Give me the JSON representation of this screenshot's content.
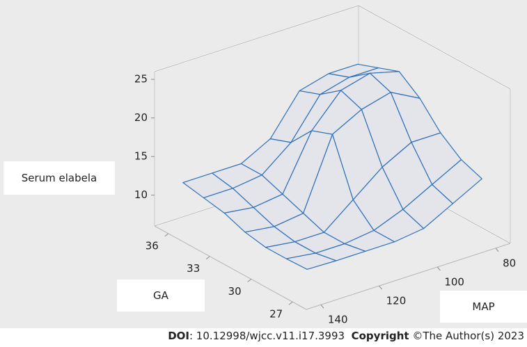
{
  "chart_data": {
    "type": "surface",
    "zlabel": "Serum elabela",
    "ylabel": "GA",
    "xlabel": "MAP",
    "x": [
      80,
      90,
      100,
      110,
      120,
      130,
      140
    ],
    "y": [
      27,
      28.5,
      30,
      31.5,
      33,
      34.5,
      36
    ],
    "z": [
      [
        14,
        12,
        10,
        9.5,
        9.5,
        9.5,
        9.6
      ],
      [
        15,
        13,
        11,
        9.5,
        9,
        9,
        9.5
      ],
      [
        17,
        17,
        15,
        12,
        9,
        9,
        9.5
      ],
      [
        20,
        22,
        21,
        19,
        10,
        9.5,
        10
      ],
      [
        22,
        23,
        22,
        18,
        11,
        10.5,
        11
      ],
      [
        21,
        21,
        20,
        15,
        12,
        11.5,
        11.5
      ],
      [
        20,
        20,
        19,
        14,
        12,
        12,
        12
      ]
    ],
    "color": "#2f6fb8",
    "xlim": [
      75,
      145
    ],
    "ylim": [
      26,
      37
    ],
    "zlim": [
      6,
      26
    ],
    "xticks": [
      80,
      100,
      120,
      140
    ],
    "yticks": [
      27,
      30,
      33,
      36
    ],
    "zticks": [
      10,
      15,
      20,
      25
    ]
  },
  "footer": {
    "doi_label": "DOI",
    "doi": ": 10.12998/wjcc.v11.i17.3993",
    "copyright_label": "Copyright",
    "copyright": "©The Author(s) 2023"
  }
}
